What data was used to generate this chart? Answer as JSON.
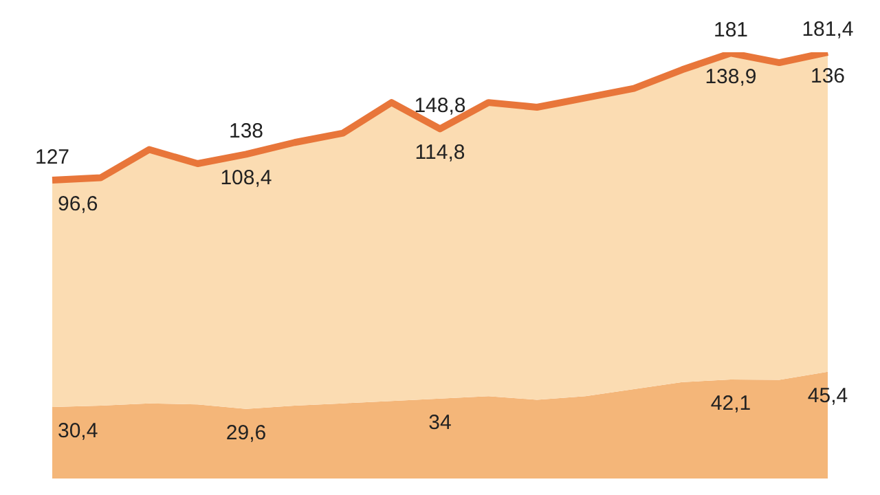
{
  "chart_data": {
    "type": "area",
    "stacked": true,
    "categories": [
      null,
      null,
      null,
      null,
      null,
      null,
      null,
      null,
      null,
      null,
      null,
      null,
      null,
      null,
      null,
      null,
      null
    ],
    "series": [
      {
        "color": "#f4b679",
        "values": [
          30.4,
          31,
          32,
          31.5,
          29.6,
          31,
          32,
          33,
          34,
          35,
          33.5,
          35,
          38,
          41,
          42.1,
          42,
          45.4
        ],
        "value_labels": [
          "30,4",
          null,
          null,
          null,
          "29,6",
          null,
          null,
          null,
          "34",
          null,
          null,
          null,
          null,
          null,
          "42,1",
          null,
          "45,4"
        ]
      },
      {
        "color": "#fbdcb2",
        "values": [
          96.6,
          97,
          108,
          102.5,
          108.4,
          112,
          115,
          127,
          114.8,
          125,
          124.5,
          127,
          128,
          133,
          138.9,
          135,
          136
        ],
        "value_labels": [
          "96,6",
          null,
          null,
          null,
          "108,4",
          null,
          null,
          null,
          "114,8",
          null,
          null,
          null,
          null,
          null,
          "138,9",
          null,
          "136"
        ]
      }
    ],
    "totals": [
      "127",
      null,
      null,
      null,
      "138",
      null,
      null,
      null,
      "148,8",
      null,
      null,
      null,
      null,
      null,
      "181",
      null,
      "181,4"
    ],
    "tick_labels": false
  }
}
